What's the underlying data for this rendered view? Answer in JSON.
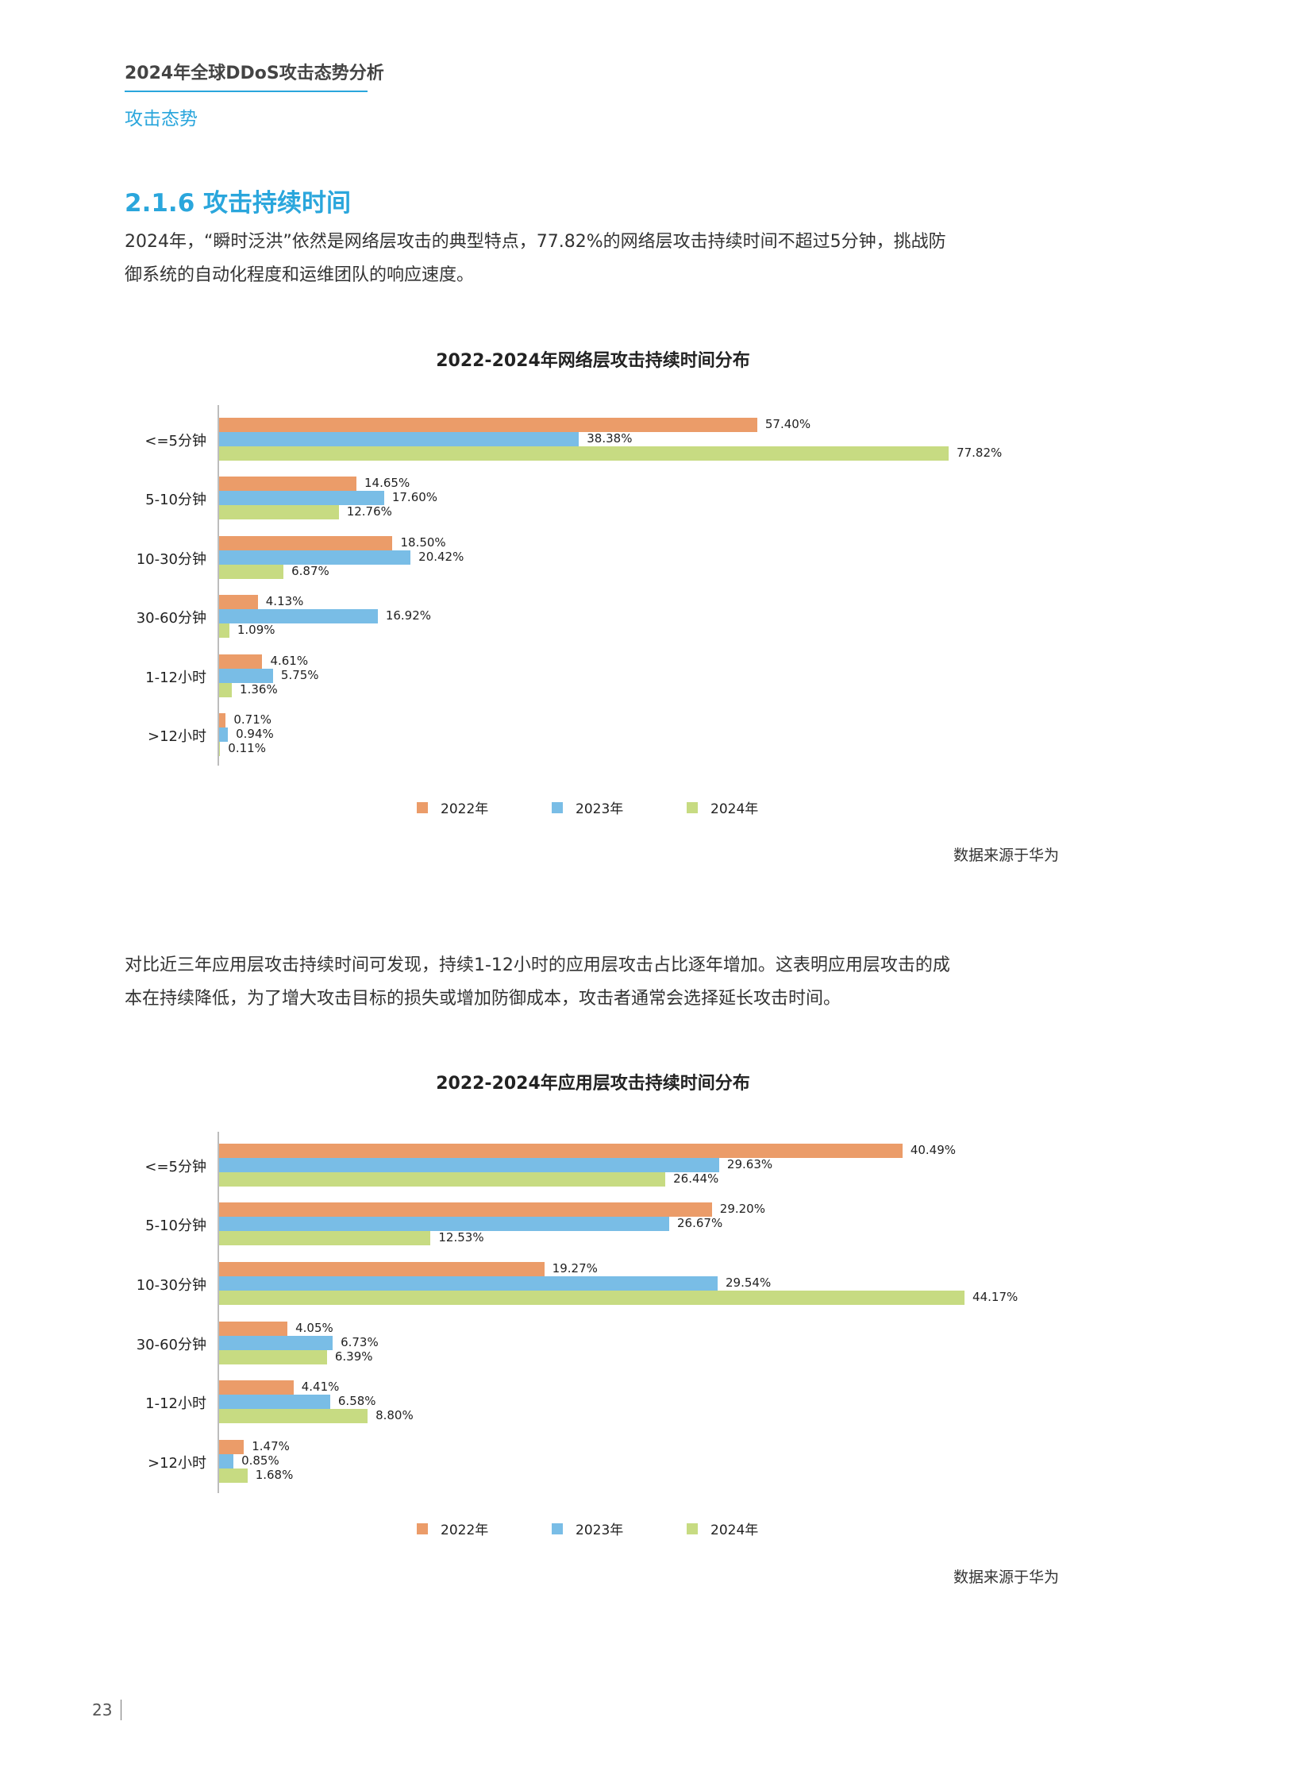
{
  "header": {
    "doc_title": "2024年全球DDoS攻击态势分析",
    "chapter": "攻击态势"
  },
  "section": {
    "title": "2.1.6 攻击持续时间",
    "para1_line1": "2024年，“瞬时泛洪”依然是网络层攻击的典型特点，77.82%的网络层攻击持续时间不超过5分钟，挑战防",
    "para1_line2": "御系统的自动化程度和运维团队的响应速度。",
    "para2_line1": "对比近三年应用层攻击持续时间可发现，持续1-12小时的应用层攻击占比逐年增加。这表明应用层攻击的成",
    "para2_line2": "本在持续降低，为了增大攻击目标的损失或增加防御成本，攻击者通常会选择延长攻击时间。"
  },
  "colors": {
    "y2022": "#eb9c69",
    "y2023": "#79bde6",
    "y2024": "#c7db82",
    "accent": "#2aa6dc"
  },
  "legend": [
    "2022年",
    "2023年",
    "2024年"
  ],
  "source": "数据来源于华为",
  "page_number": "23",
  "chart_data": [
    {
      "type": "bar",
      "orientation": "horizontal",
      "title": "2022-2024年网络层攻击持续时间分布",
      "categories": [
        "<=5分钟",
        "5-10分钟",
        "10-30分钟",
        "30-60分钟",
        "1-12小时",
        ">12小时"
      ],
      "series": [
        {
          "name": "2022年",
          "values": [
            57.4,
            14.65,
            18.5,
            4.13,
            4.61,
            0.71
          ],
          "labels": [
            "57.40%",
            "14.65%",
            "18.50%",
            "4.13%",
            "4.61%",
            "0.71%"
          ]
        },
        {
          "name": "2023年",
          "values": [
            38.38,
            17.6,
            20.42,
            16.92,
            5.75,
            0.94
          ],
          "labels": [
            "38.38%",
            "17.60%",
            "20.42%",
            "16.92%",
            "5.75%",
            "0.94%"
          ]
        },
        {
          "name": "2024年",
          "values": [
            77.82,
            12.76,
            6.87,
            1.09,
            1.36,
            0.11
          ],
          "labels": [
            "77.82%",
            "12.76%",
            "6.87%",
            "1.09%",
            "1.36%",
            "0.11%"
          ]
        }
      ],
      "xlabel": "",
      "ylabel": "",
      "unit": "%",
      "grid": false,
      "legend_position": "bottom",
      "source": "数据来源于华为"
    },
    {
      "type": "bar",
      "orientation": "horizontal",
      "title": "2022-2024年应用层攻击持续时间分布",
      "categories": [
        "<=5分钟",
        "5-10分钟",
        "10-30分钟",
        "30-60分钟",
        "1-12小时",
        ">12小时"
      ],
      "series": [
        {
          "name": "2022年",
          "values": [
            40.49,
            29.2,
            19.27,
            4.05,
            4.41,
            1.47
          ],
          "labels": [
            "40.49%",
            "29.20%",
            "19.27%",
            "4.05%",
            "4.41%",
            "1.47%"
          ]
        },
        {
          "name": "2023年",
          "values": [
            29.63,
            26.67,
            29.54,
            6.73,
            6.58,
            0.85
          ],
          "labels": [
            "29.63%",
            "26.67%",
            "29.54%",
            "6.73%",
            "6.58%",
            "0.85%"
          ]
        },
        {
          "name": "2024年",
          "values": [
            26.44,
            12.53,
            44.17,
            6.39,
            8.8,
            1.68
          ],
          "labels": [
            "26.44%",
            "12.53%",
            "44.17%",
            "6.39%",
            "8.80%",
            "1.68%"
          ]
        }
      ],
      "xlabel": "",
      "ylabel": "",
      "unit": "%",
      "grid": false,
      "legend_position": "bottom",
      "source": "数据来源于华为"
    }
  ]
}
